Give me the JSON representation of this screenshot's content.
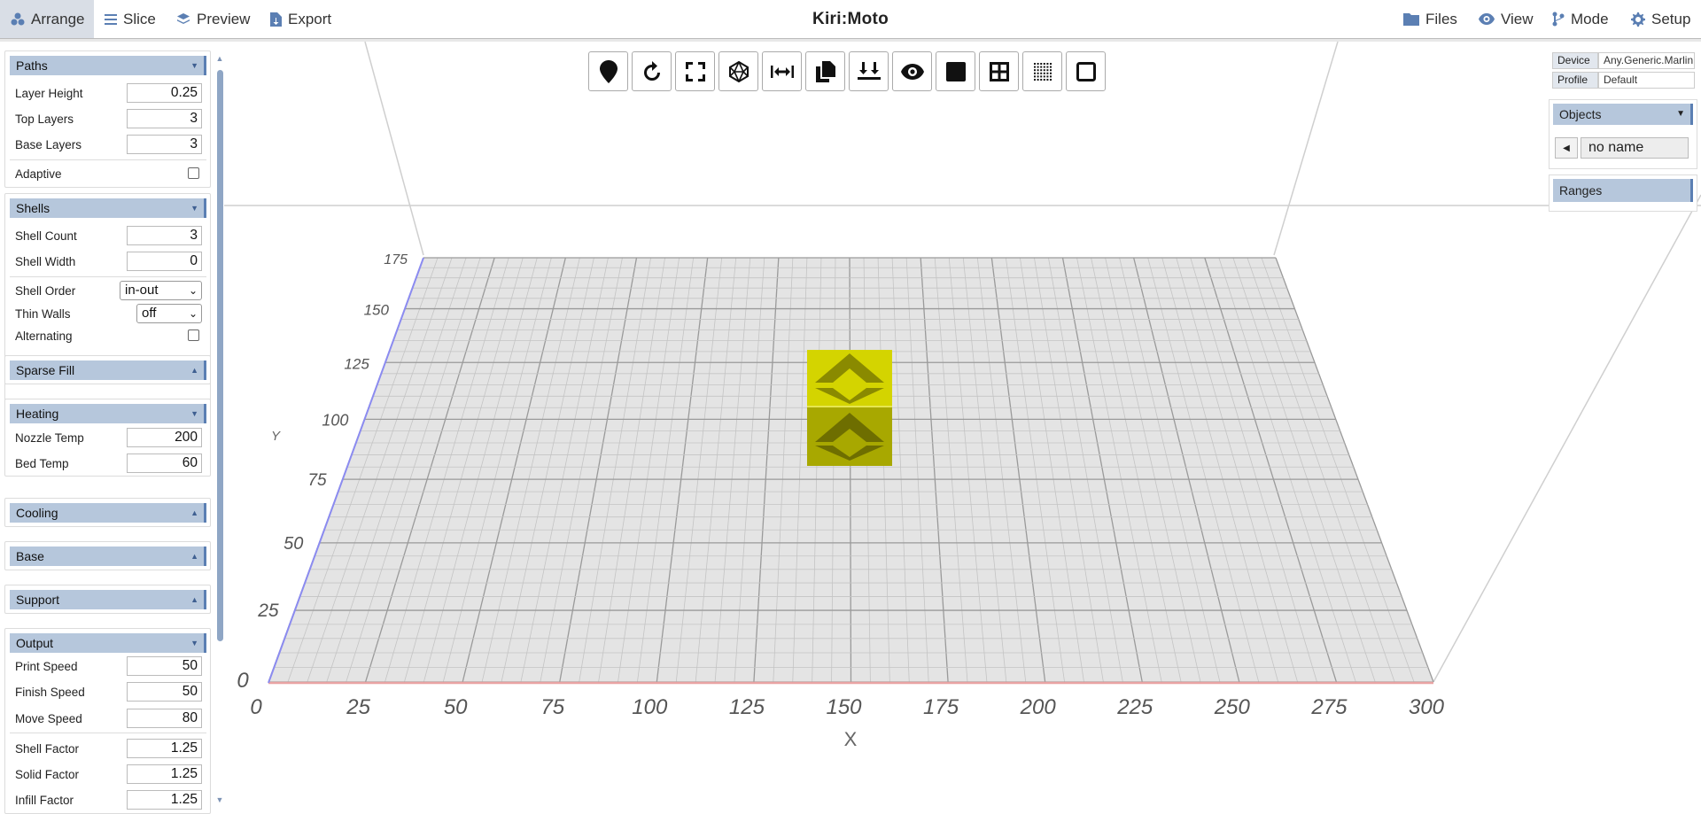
{
  "nav": {
    "arrange": "Arrange",
    "slice": "Slice",
    "preview": "Preview",
    "export": "Export",
    "files": "Files",
    "view": "View",
    "mode": "Mode",
    "setup": "Setup"
  },
  "brand": "Kiri:Moto",
  "panel": {
    "paths": {
      "title": "Paths",
      "layer_height": {
        "label": "Layer Height",
        "value": "0.25"
      },
      "top_layers": {
        "label": "Top Layers",
        "value": "3"
      },
      "base_layers": {
        "label": "Base Layers",
        "value": "3"
      },
      "adaptive": {
        "label": "Adaptive",
        "checked": false
      }
    },
    "shells": {
      "title": "Shells",
      "shell_count": {
        "label": "Shell Count",
        "value": "3"
      },
      "shell_width": {
        "label": "Shell Width",
        "value": "0"
      },
      "shell_order": {
        "label": "Shell Order",
        "value": "in-out"
      },
      "thin_walls": {
        "label": "Thin Walls",
        "value": "off"
      },
      "alternating": {
        "label": "Alternating",
        "checked": false
      }
    },
    "sparse_fill": {
      "title": "Sparse Fill"
    },
    "heating": {
      "title": "Heating",
      "nozzle_temp": {
        "label": "Nozzle Temp",
        "value": "200"
      },
      "bed_temp": {
        "label": "Bed Temp",
        "value": "60"
      }
    },
    "cooling": {
      "title": "Cooling"
    },
    "base": {
      "title": "Base"
    },
    "support": {
      "title": "Support"
    },
    "output": {
      "title": "Output",
      "print_speed": {
        "label": "Print Speed",
        "value": "50"
      },
      "finish_speed": {
        "label": "Finish Speed",
        "value": "50"
      },
      "move_speed": {
        "label": "Move Speed",
        "value": "80"
      },
      "shell_factor": {
        "label": "Shell Factor",
        "value": "1.25"
      },
      "solid_factor": {
        "label": "Solid Factor",
        "value": "1.25"
      },
      "infill_factor": {
        "label": "Infill Factor",
        "value": "1.25"
      }
    }
  },
  "toolbar_icons": [
    "map-pin-icon",
    "rotate-icon",
    "fit-screen-icon",
    "polyhedron-icon",
    "arrows-h-icon",
    "copy-icon",
    "download-icon",
    "eye-icon",
    "square-fill-icon",
    "grid-icon",
    "dotted-grid-icon",
    "square-outline-icon"
  ],
  "right": {
    "device_label": "Device",
    "device_value": "Any.Generic.Marlin",
    "profile_label": "Profile",
    "profile_value": "Default",
    "objects_title": "Objects",
    "object_name": "no name",
    "ranges_title": "Ranges"
  },
  "axes": {
    "x_label": "X",
    "y_label": "Y",
    "x_ticks": [
      "0",
      "25",
      "50",
      "75",
      "100",
      "125",
      "150",
      "175",
      "200",
      "225",
      "250",
      "275",
      "300"
    ],
    "y_ticks": [
      "25",
      "50",
      "75",
      "100",
      "125",
      "150",
      "175"
    ],
    "origin": "0"
  },
  "colors": {
    "accent": "#5b7fb3",
    "panel_header": "#b6c7dc",
    "model": "#cccc00",
    "x_axis": "#e8a0a0",
    "y_axis": "#8888ee"
  }
}
